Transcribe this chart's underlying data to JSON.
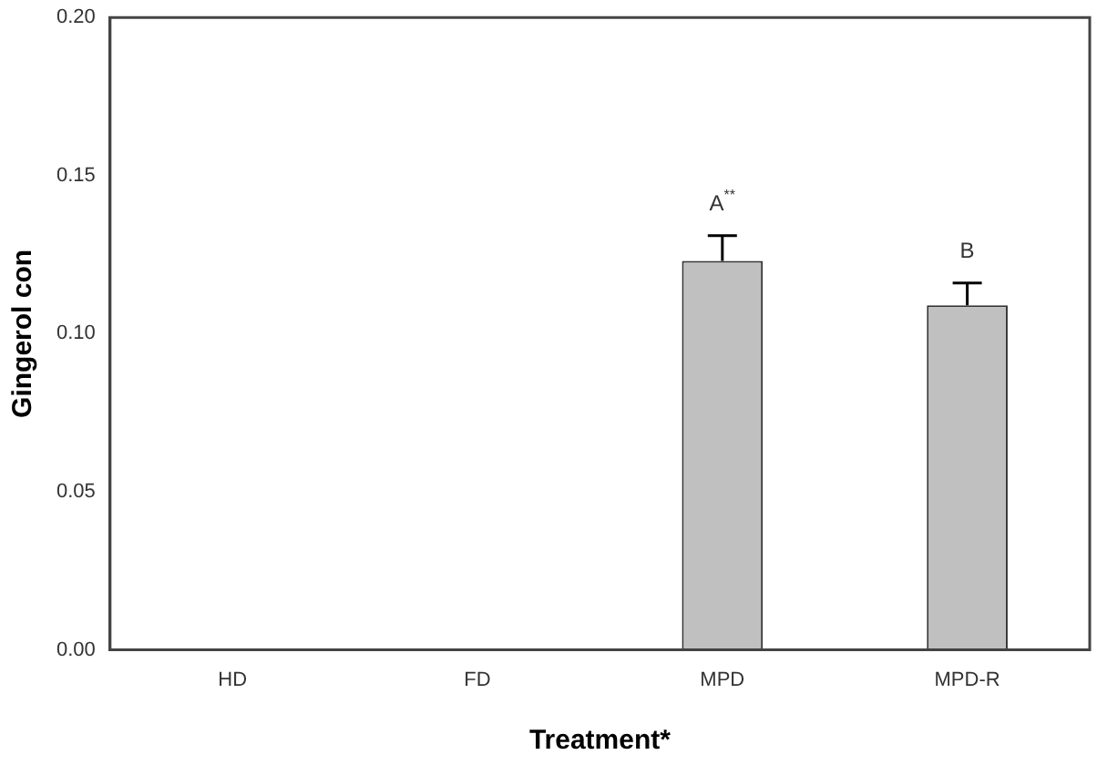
{
  "chart_data": {
    "type": "bar",
    "xlabel": "Treatment*",
    "ylabel": "Gingerol con",
    "categories": [
      "HD",
      "FD",
      "MPD",
      "MPD-R"
    ],
    "values": [
      null,
      null,
      0.123,
      0.109
    ],
    "errors": [
      null,
      null,
      0.008,
      0.007
    ],
    "color": "#c0c0c0",
    "ylim": [
      0,
      0.2
    ],
    "yticks": [
      {
        "value": 0,
        "label": "0.00"
      },
      {
        "value": 0.05,
        "label": "0.05"
      },
      {
        "value": 0.1,
        "label": "0.10"
      },
      {
        "value": 0.15,
        "label": "0.15"
      },
      {
        "value": 0.2,
        "label": "0.20"
      }
    ],
    "grid": false,
    "legend": false,
    "annotations": [
      "A$^{**}$",
      "B"
    ]
  }
}
